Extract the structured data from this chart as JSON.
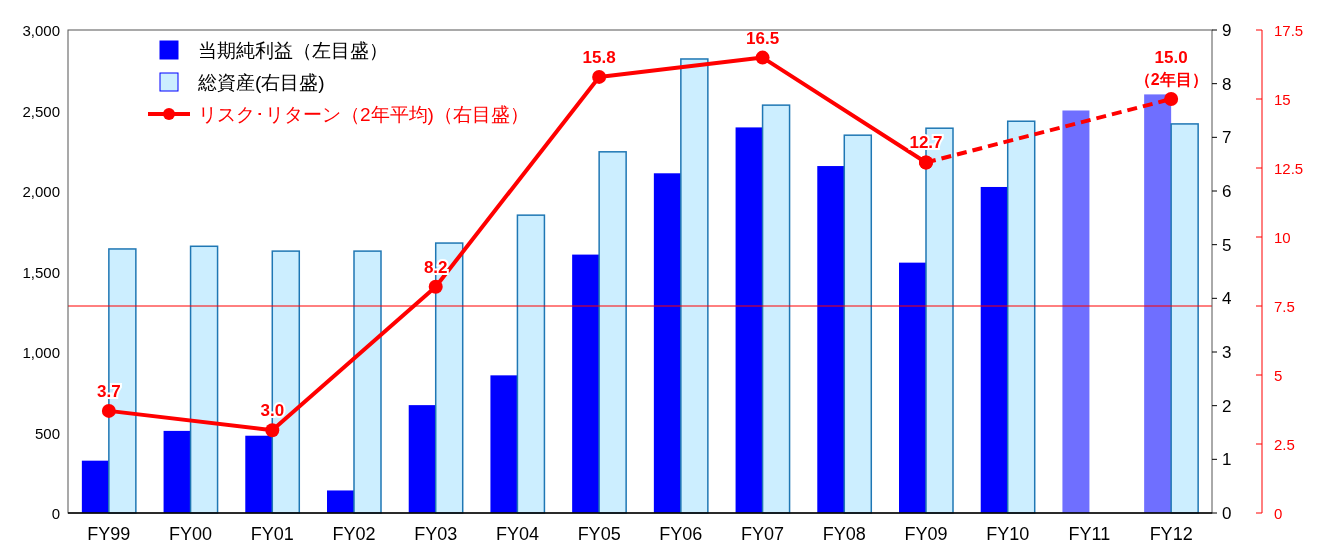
{
  "chart_data": {
    "type": "bar",
    "categories": [
      "FY99",
      "FY00",
      "FY01",
      "FY02",
      "FY03",
      "FY04",
      "FY05",
      "FY06",
      "FY07",
      "FY08",
      "FY09",
      "FY10",
      "FY11",
      "FY12"
    ],
    "ylim": [
      0,
      3000
    ],
    "yticks": [
      {
        "value": 0,
        "label": "0"
      },
      {
        "value": 500,
        "label": "500"
      },
      {
        "value": 1000,
        "label": "1,000"
      },
      {
        "value": 1500,
        "label": "1,500"
      },
      {
        "value": 2000,
        "label": "2,000"
      },
      {
        "value": 2500,
        "label": "2,500"
      },
      {
        "value": 3000,
        "label": "3,000"
      }
    ],
    "y2lim": [
      0,
      9
    ],
    "y2ticks": [
      0,
      1,
      2,
      3,
      4,
      5,
      6,
      7,
      8,
      9
    ],
    "y3lim": [
      0,
      17.5
    ],
    "y3ticks": [
      0,
      2.5,
      5,
      7.5,
      10,
      12.5,
      15,
      17.5
    ],
    "legend": "top left",
    "grid": false,
    "series": [
      {
        "name": "当期純利益（左目盛）",
        "color": "#0000ff",
        "colors": [
          "#0000ff",
          "#0000ff",
          "#0000ff",
          "#0000ff",
          "#0000ff",
          "#0000ff",
          "#0000ff",
          "#0000ff",
          "#0000ff",
          "#0000ff",
          "#0000ff",
          "#0000ff",
          "#6f6fff",
          "#6f6fff"
        ],
        "values": [
          325,
          510,
          480,
          140,
          670,
          855,
          1605,
          2110,
          2395,
          2155,
          1555,
          2025,
          2500,
          2600
        ]
      },
      {
        "name": "総資産(右目盛)",
        "color": "#cceeff",
        "axis": "y2",
        "values": [
          4.92,
          4.97,
          4.88,
          4.88,
          5.03,
          5.55,
          6.73,
          8.46,
          7.6,
          7.04,
          7.17,
          7.3,
          null,
          7.25
        ]
      },
      {
        "name": "リスク･リターン（2年平均)（右目盛）",
        "type": "line",
        "axis": "y3",
        "color": "#ff0000",
        "marker": "circle",
        "line_style": "solid",
        "values": [
          3.7,
          null,
          3.0,
          null,
          8.2,
          null,
          15.8,
          null,
          16.5,
          null,
          12.7,
          null,
          null,
          null
        ],
        "value_labels": [
          "3.7",
          null,
          "3.0",
          null,
          "8.2",
          null,
          "15.8",
          null,
          "16.5",
          null,
          "12.7",
          null,
          null,
          null
        ]
      },
      {
        "type": "line",
        "axis": "y3",
        "color": "#ff0000",
        "marker": "circle",
        "line_style": "dashed",
        "values": [
          null,
          null,
          null,
          null,
          null,
          null,
          null,
          null,
          null,
          null,
          12.7,
          null,
          null,
          15.0
        ],
        "value_labels": [
          null,
          null,
          null,
          null,
          null,
          null,
          null,
          null,
          null,
          null,
          null,
          null,
          null,
          "15.0"
        ]
      }
    ],
    "ref_lines": [
      {
        "axis": "y3",
        "value": 7.5,
        "color": "#ff0000"
      }
    ],
    "annotations": [
      "（2年目）"
    ]
  }
}
